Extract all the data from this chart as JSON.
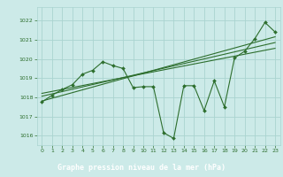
{
  "background_color": "#cceae8",
  "label_bg_color": "#3d8b3d",
  "grid_color": "#aad4d0",
  "line_color": "#2d6e2d",
  "label_text_color": "#ffffff",
  "title": "Graphe pression niveau de la mer (hPa)",
  "ylim": [
    1015.5,
    1022.7
  ],
  "xlim": [
    -0.5,
    23.5
  ],
  "yticks": [
    1016,
    1017,
    1018,
    1019,
    1020,
    1021,
    1022
  ],
  "xticks": [
    0,
    1,
    2,
    3,
    4,
    5,
    6,
    7,
    8,
    9,
    10,
    11,
    12,
    13,
    14,
    15,
    16,
    17,
    18,
    19,
    20,
    21,
    22,
    23
  ],
  "series_main": {
    "x": [
      0,
      1,
      2,
      3,
      4,
      5,
      6,
      7,
      8,
      9,
      10,
      11,
      12,
      13,
      14,
      15,
      16,
      17,
      18,
      19,
      20,
      21,
      22,
      23
    ],
    "y": [
      1017.75,
      1018.1,
      1018.4,
      1018.65,
      1019.2,
      1019.4,
      1019.85,
      1019.65,
      1019.5,
      1018.5,
      1018.55,
      1018.55,
      1016.15,
      1015.85,
      1018.6,
      1018.6,
      1017.3,
      1018.85,
      1017.5,
      1020.05,
      1020.4,
      1021.05,
      1021.9,
      1021.4
    ]
  },
  "trend1": {
    "x": [
      0,
      23
    ],
    "y": [
      1017.8,
      1021.15
    ]
  },
  "trend2": {
    "x": [
      0,
      23
    ],
    "y": [
      1018.2,
      1020.55
    ]
  },
  "trend3": {
    "x": [
      0,
      23
    ],
    "y": [
      1018.05,
      1020.85
    ]
  }
}
